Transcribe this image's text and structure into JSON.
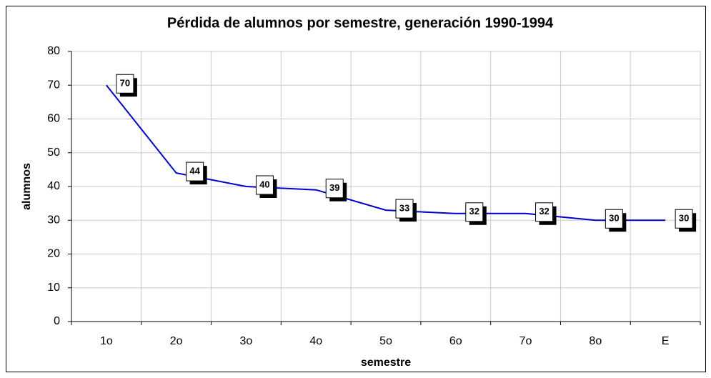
{
  "chart_data": {
    "type": "line",
    "title": "Pérdida de alumnos por semestre, generación 1990-1994",
    "x_label": "semestre",
    "y_label": "alumnos",
    "categories": [
      "1o",
      "2o",
      "3o",
      "4o",
      "5o",
      "6o",
      "7o",
      "8o",
      "E"
    ],
    "values": [
      70,
      44,
      40,
      39,
      33,
      32,
      32,
      30,
      30
    ],
    "color": "#0000cc",
    "ylim": [
      0,
      80
    ],
    "yticks": [
      0,
      10,
      20,
      30,
      40,
      50,
      60,
      70,
      80
    ],
    "grid": true
  }
}
